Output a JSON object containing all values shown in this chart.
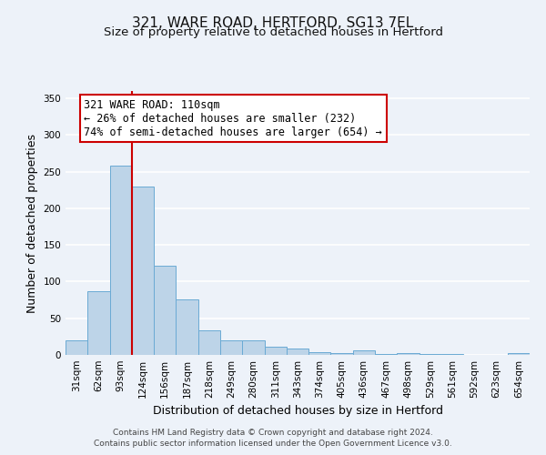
{
  "title": "321, WARE ROAD, HERTFORD, SG13 7EL",
  "subtitle": "Size of property relative to detached houses in Hertford",
  "xlabel": "Distribution of detached houses by size in Hertford",
  "ylabel": "Number of detached properties",
  "categories": [
    "31sqm",
    "62sqm",
    "93sqm",
    "124sqm",
    "156sqm",
    "187sqm",
    "218sqm",
    "249sqm",
    "280sqm",
    "311sqm",
    "343sqm",
    "374sqm",
    "405sqm",
    "436sqm",
    "467sqm",
    "498sqm",
    "529sqm",
    "561sqm",
    "592sqm",
    "623sqm",
    "654sqm"
  ],
  "values": [
    20,
    87,
    258,
    230,
    122,
    76,
    34,
    20,
    20,
    11,
    9,
    4,
    2,
    6,
    1,
    2,
    1,
    1,
    0,
    0,
    3
  ],
  "bar_color": "#bdd4e8",
  "bar_edge_color": "#6aaad4",
  "vline_color": "#cc0000",
  "vline_bar_index": 2.5,
  "ylim": [
    0,
    360
  ],
  "yticks": [
    0,
    50,
    100,
    150,
    200,
    250,
    300,
    350
  ],
  "annotation_title": "321 WARE ROAD: 110sqm",
  "annotation_line1": "← 26% of detached houses are smaller (232)",
  "annotation_line2": "74% of semi-detached houses are larger (654) →",
  "annotation_box_facecolor": "#ffffff",
  "annotation_box_edgecolor": "#cc0000",
  "footer1": "Contains HM Land Registry data © Crown copyright and database right 2024.",
  "footer2": "Contains public sector information licensed under the Open Government Licence v3.0.",
  "background_color": "#edf2f9",
  "grid_color": "#ffffff",
  "title_fontsize": 11,
  "subtitle_fontsize": 9.5,
  "axis_label_fontsize": 9,
  "tick_fontsize": 7.5,
  "annotation_fontsize": 8.5,
  "footer_fontsize": 6.5
}
